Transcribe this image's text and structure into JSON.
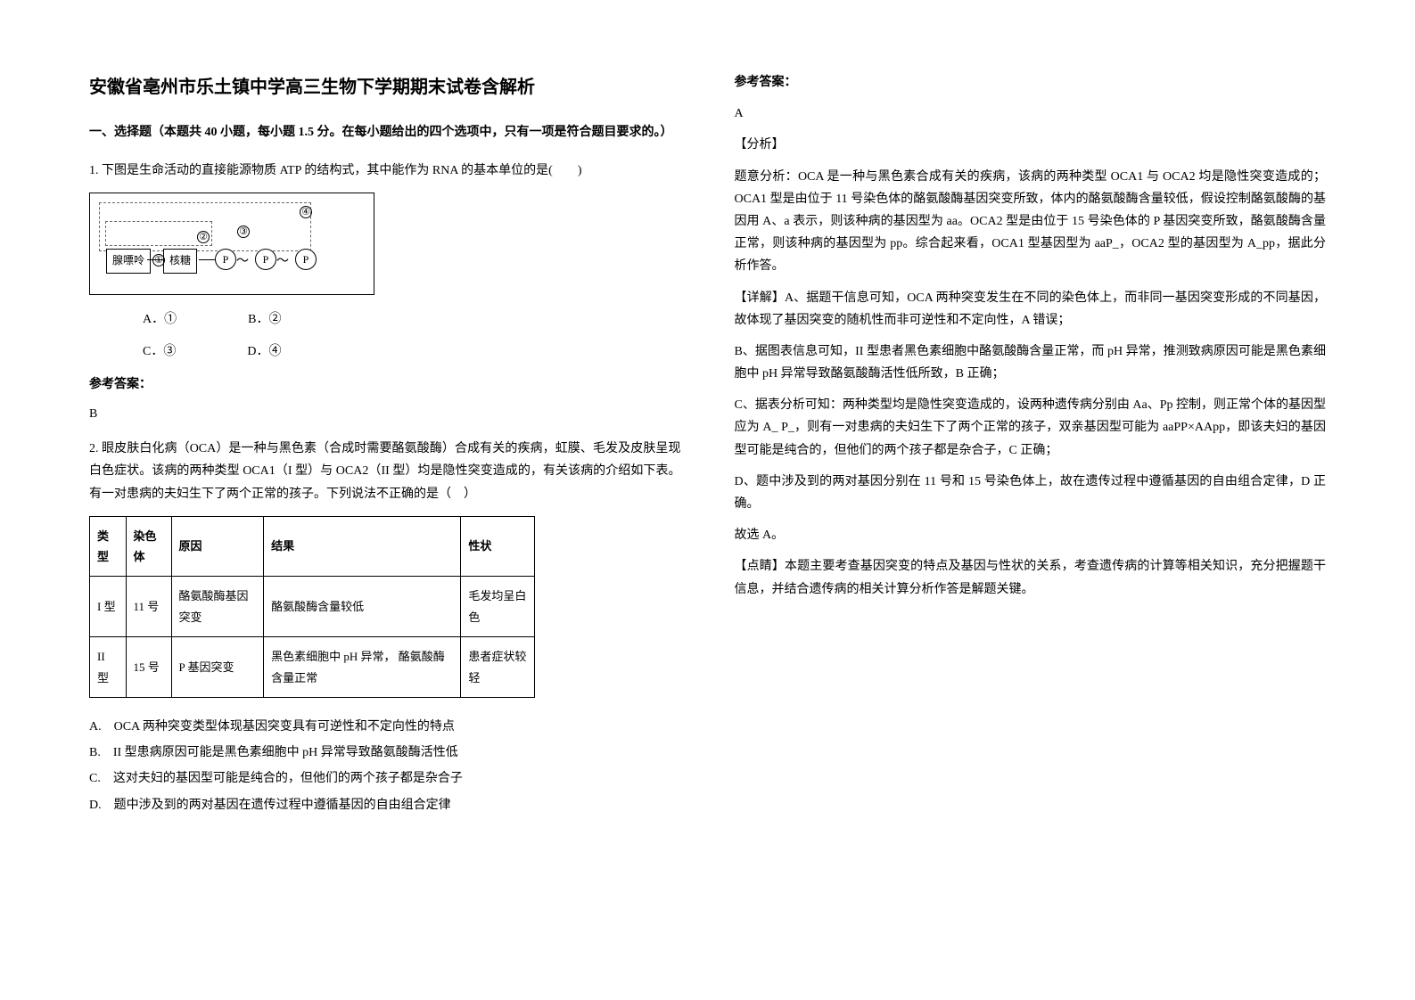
{
  "title": "安徽省亳州市乐土镇中学高三生物下学期期末试卷含解析",
  "section1_head": "一、选择题（本题共 40 小题，每小题 1.5 分。在每小题给出的四个选项中，只有一项是符合题目要求的。）",
  "q1": {
    "stem": "1. 下图是生命活动的直接能源物质 ATP 的结构式，其中能作为 RNA 的基本单位的是(　　)",
    "labels": {
      "adenine": "腺嘌呤",
      "ribose": "核糖",
      "p": "P"
    },
    "opt_a": "A．①",
    "opt_b": "B．②",
    "opt_c": "C．③",
    "opt_d": "D．④",
    "ans_label": "参考答案：",
    "ans": "B"
  },
  "q2": {
    "stem": "2. 眼皮肤白化病（OCA）是一种与黑色素（合成时需要酪氨酸酶）合成有关的疾病，虹膜、毛发及皮肤呈现白色症状。该病的两种类型 OCA1（I 型）与 OCA2（II 型）均是隐性突变造成的，有关该病的介绍如下表。有一对患病的夫妇生下了两个正常的孩子。下列说法不正确的是（　）",
    "th1": "类型",
    "th2": "染色体",
    "th3": "原因",
    "th4": "结果",
    "th5": "性状",
    "r1c1": "I 型",
    "r1c2": "11 号",
    "r1c3": "酪氨酸酶基因突变",
    "r1c4": "酪氨酸酶含量较低",
    "r1c5": "毛发均呈白色",
    "r2c1": "II 型",
    "r2c2": "15 号",
    "r2c3": "P 基因突变",
    "r2c4": "黑色素细胞中 pH 异常，\n酪氨酸酶含量正常",
    "r2c5": "患者症状较轻",
    "opt_a": "A.　OCA 两种突变类型体现基因突变具有可逆性和不定向性的特点",
    "opt_b": "B.　II 型患病原因可能是黑色素细胞中 pH 异常导致酪氨酸酶活性低",
    "opt_c": "C.　这对夫妇的基因型可能是纯合的，但他们的两个孩子都是杂合子",
    "opt_d": "D.　题中涉及到的两对基因在遗传过程中遵循基因的自由组合定律"
  },
  "right": {
    "ans_label": "参考答案：",
    "ans": "A",
    "fx_label": "【分析】",
    "fx1": "题意分析：OCA 是一种与黑色素合成有关的疾病，该病的两种类型 OCA1 与 OCA2 均是隐性突变造成的；OCA1 型是由位于 11 号染色体的酪氨酸酶基因突变所致，体内的酪氨酸酶含量较低，假设控制酪氨酸酶的基因用 A、a 表示，则该种病的基因型为 aa。OCA2 型是由位于 15 号染色体的 P 基因突变所致，酪氨酸酶含量正常，则该种病的基因型为 pp。综合起来看，OCA1 型基因型为 aaP_，OCA2 型的基因型为 A_pp，据此分析作答。",
    "xj_label": "【详解】A、据题干信息可知，OCA 两种突变发生在不同的染色体上，而非同一基因突变形成的不同基因，故体现了基因突变的随机性而非可逆性和不定向性，A 错误；",
    "b": "B、据图表信息可知，II 型患者黑色素细胞中酪氨酸酶含量正常，而 pH 异常，推测致病原因可能是黑色素细胞中 pH 异常导致酪氨酸酶活性低所致，B 正确；",
    "c": "C、据表分析可知：两种类型均是隐性突变造成的，设两种遗传病分别由 Aa、Pp 控制，则正常个体的基因型应为 A_ P_，则有一对患病的夫妇生下了两个正常的孩子，双亲基因型可能为 aaPP×AApp，即该夫妇的基因型可能是纯合的，但他们的两个孩子都是杂合子，C 正确；",
    "d": "D、题中涉及到的两对基因分别在 11 号和 15 号染色体上，故在遗传过程中遵循基因的自由组合定律，D 正确。",
    "pick": "故选 A。",
    "ds_label": "【点睛】本题主要考查基因突变的特点及基因与性状的关系，考查遗传病的计算等相关知识，充分把握题干信息，并结合遗传病的相关计算分析作答是解题关键。"
  }
}
